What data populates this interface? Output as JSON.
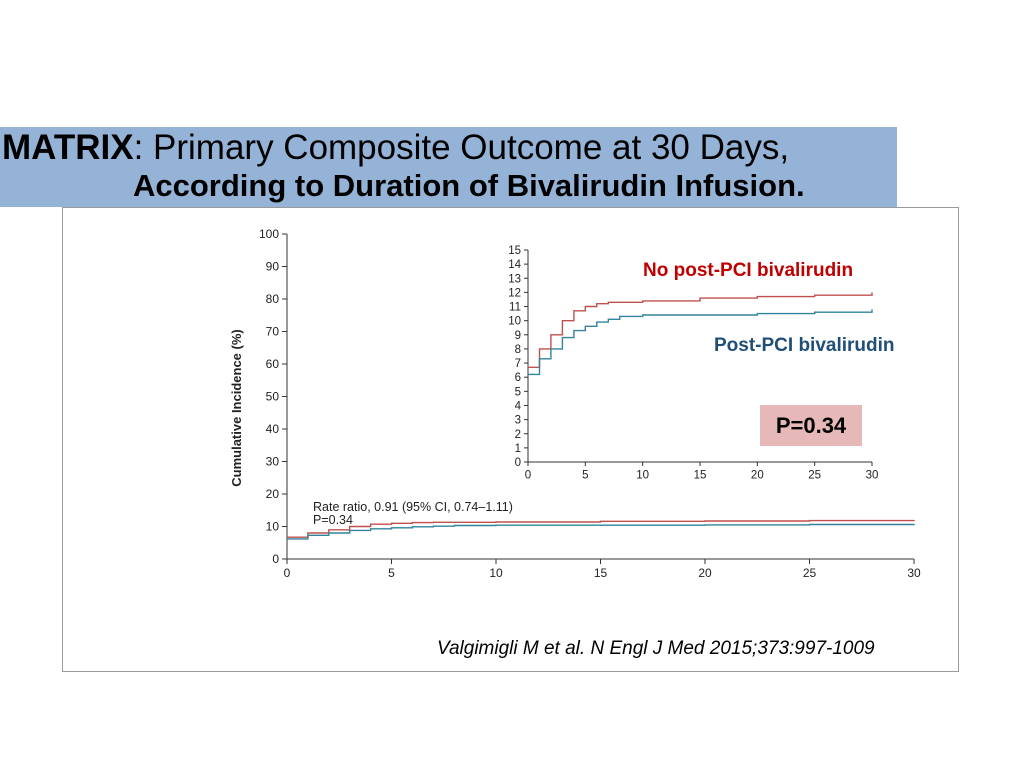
{
  "title": {
    "bold": "MATRIX",
    "rest": ": Primary Composite Outcome at 30 Days,",
    "line2": "According to Duration of Bivalirudin Infusion."
  },
  "annotations": {
    "no_post_label": "No post-PCI bivalirudin",
    "post_label": "Post-PCI bivalirudin",
    "pvalue_box": "P=0.34",
    "rate_ratio": "Rate ratio, 0.91 (95% CI, 0.74–1.11)",
    "rate_p": "P=0.34",
    "citation": "Valgimigli M et al. N Engl J Med 2015;373:997-1009"
  },
  "colors": {
    "no_post": "#c0504d",
    "post": "#31849b",
    "band": "#95b3d7",
    "pbox": "#e6b9b8"
  },
  "chart_data": [
    {
      "type": "line",
      "step": true,
      "ylabel": "Cumulative Incidence (%)",
      "xlabel": "",
      "xlim": [
        0,
        30
      ],
      "ylim": [
        0,
        100
      ],
      "xticks": [
        0,
        5,
        10,
        15,
        20,
        25,
        30
      ],
      "yticks": [
        0,
        10,
        20,
        30,
        40,
        50,
        60,
        70,
        80,
        90,
        100
      ],
      "series": [
        {
          "name": "No post-PCI bivalirudin",
          "x": [
            0,
            1,
            2,
            3,
            4,
            5,
            6,
            7,
            8,
            10,
            15,
            20,
            25,
            30
          ],
          "y": [
            6.7,
            8.0,
            9.0,
            10.0,
            10.7,
            11.0,
            11.2,
            11.3,
            11.3,
            11.4,
            11.6,
            11.7,
            11.8,
            12.0
          ]
        },
        {
          "name": "Post-PCI bivalirudin",
          "x": [
            0,
            1,
            2,
            3,
            4,
            5,
            6,
            7,
            8,
            10,
            15,
            20,
            25,
            30
          ],
          "y": [
            6.2,
            7.3,
            8.0,
            8.8,
            9.3,
            9.6,
            9.9,
            10.1,
            10.3,
            10.4,
            10.4,
            10.5,
            10.6,
            10.8
          ]
        }
      ]
    },
    {
      "type": "line",
      "step": true,
      "xlim": [
        0,
        30
      ],
      "ylim": [
        0,
        15
      ],
      "xticks": [
        0,
        5,
        10,
        15,
        20,
        25,
        30
      ],
      "yticks": [
        0,
        1,
        2,
        3,
        4,
        5,
        6,
        7,
        8,
        9,
        10,
        11,
        12,
        13,
        14,
        15
      ],
      "series": [
        {
          "name": "No post-PCI bivalirudin",
          "x": [
            0,
            1,
            2,
            3,
            4,
            5,
            6,
            7,
            8,
            10,
            15,
            20,
            25,
            30
          ],
          "y": [
            6.7,
            8.0,
            9.0,
            10.0,
            10.7,
            11.0,
            11.2,
            11.3,
            11.3,
            11.4,
            11.6,
            11.7,
            11.8,
            12.0
          ]
        },
        {
          "name": "Post-PCI bivalirudin",
          "x": [
            0,
            1,
            2,
            3,
            4,
            5,
            6,
            7,
            8,
            10,
            15,
            20,
            25,
            30
          ],
          "y": [
            6.2,
            7.3,
            8.0,
            8.8,
            9.3,
            9.6,
            9.9,
            10.1,
            10.3,
            10.4,
            10.4,
            10.5,
            10.6,
            10.8
          ]
        }
      ]
    }
  ]
}
